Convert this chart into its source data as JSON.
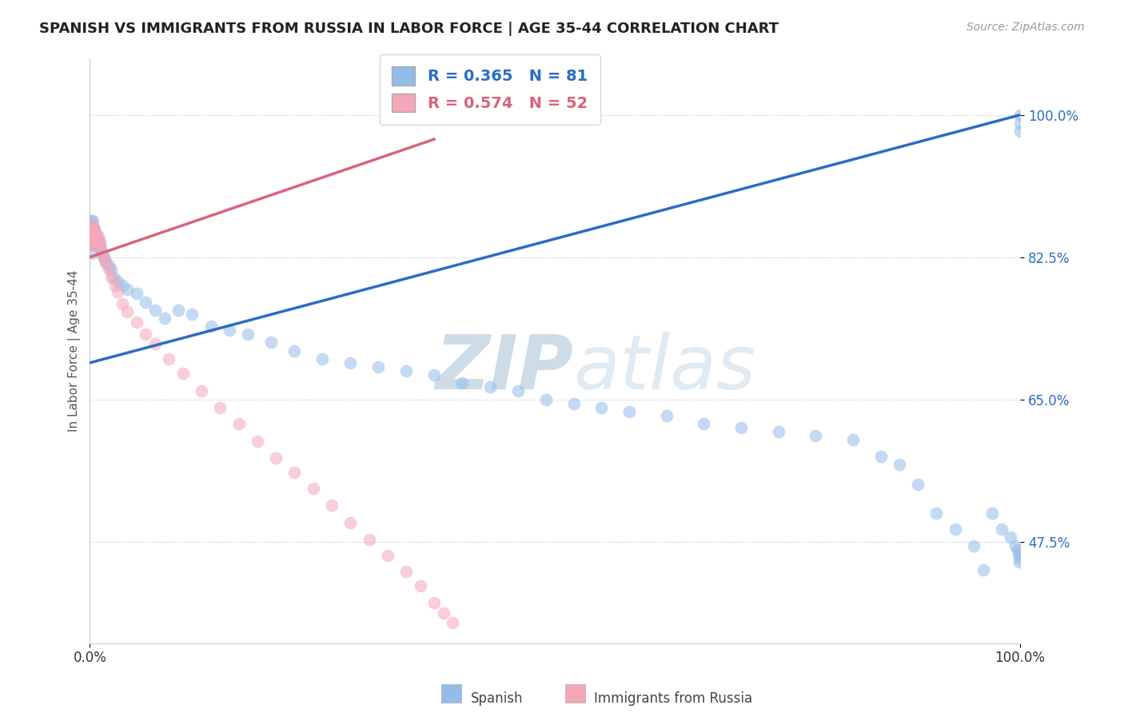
{
  "title": "SPANISH VS IMMIGRANTS FROM RUSSIA IN LABOR FORCE | AGE 35-44 CORRELATION CHART",
  "source": "Source: ZipAtlas.com",
  "ylabel": "In Labor Force | Age 35-44",
  "xlim": [
    0,
    1.0
  ],
  "ylim": [
    0.35,
    1.07
  ],
  "ytick_labels": [
    "47.5%",
    "65.0%",
    "82.5%",
    "100.0%"
  ],
  "ytick_values": [
    0.475,
    0.65,
    0.825,
    1.0
  ],
  "R_spanish": 0.365,
  "N_spanish": 81,
  "R_russia": 0.574,
  "N_russia": 52,
  "color_spanish": "#92bde8",
  "color_russia": "#f4a7b9",
  "line_color_spanish": "#2b6cc4",
  "line_color_russia": "#d9647a",
  "background_color": "#ffffff",
  "watermark": "ZIPatlas",
  "watermark_color": "#c8d8ea",
  "spanish_x": [
    0.001,
    0.001,
    0.002,
    0.002,
    0.002,
    0.003,
    0.003,
    0.003,
    0.003,
    0.004,
    0.004,
    0.004,
    0.005,
    0.005,
    0.005,
    0.005,
    0.006,
    0.006,
    0.007,
    0.007,
    0.008,
    0.009,
    0.01,
    0.011,
    0.012,
    0.013,
    0.015,
    0.017,
    0.02,
    0.023,
    0.025,
    0.03,
    0.035,
    0.04,
    0.05,
    0.06,
    0.07,
    0.08,
    0.095,
    0.11,
    0.13,
    0.15,
    0.17,
    0.195,
    0.22,
    0.25,
    0.28,
    0.31,
    0.34,
    0.37,
    0.4,
    0.43,
    0.46,
    0.49,
    0.52,
    0.55,
    0.58,
    0.62,
    0.66,
    0.7,
    0.74,
    0.78,
    0.82,
    0.85,
    0.87,
    0.89,
    0.91,
    0.93,
    0.95,
    0.96,
    0.97,
    0.98,
    0.99,
    0.995,
    0.997,
    0.998,
    0.999,
    0.999,
    1.0,
    1.0,
    1.0
  ],
  "spanish_y": [
    0.85,
    0.87,
    0.83,
    0.85,
    0.865,
    0.84,
    0.855,
    0.87,
    0.84,
    0.85,
    0.855,
    0.86,
    0.84,
    0.85,
    0.855,
    0.86,
    0.84,
    0.85,
    0.84,
    0.845,
    0.84,
    0.843,
    0.845,
    0.842,
    0.835,
    0.83,
    0.825,
    0.82,
    0.815,
    0.81,
    0.8,
    0.795,
    0.79,
    0.785,
    0.78,
    0.77,
    0.76,
    0.75,
    0.76,
    0.755,
    0.74,
    0.735,
    0.73,
    0.72,
    0.71,
    0.7,
    0.695,
    0.69,
    0.685,
    0.68,
    0.67,
    0.665,
    0.66,
    0.65,
    0.645,
    0.64,
    0.635,
    0.63,
    0.62,
    0.615,
    0.61,
    0.605,
    0.6,
    0.58,
    0.57,
    0.545,
    0.51,
    0.49,
    0.47,
    0.44,
    0.51,
    0.49,
    0.48,
    0.47,
    0.465,
    0.46,
    0.455,
    0.45,
    0.98,
    0.99,
    1.0
  ],
  "russia_x": [
    0.001,
    0.001,
    0.002,
    0.002,
    0.002,
    0.003,
    0.003,
    0.003,
    0.004,
    0.004,
    0.004,
    0.005,
    0.005,
    0.005,
    0.006,
    0.006,
    0.007,
    0.007,
    0.008,
    0.009,
    0.01,
    0.011,
    0.013,
    0.015,
    0.017,
    0.02,
    0.023,
    0.027,
    0.03,
    0.035,
    0.04,
    0.05,
    0.06,
    0.07,
    0.085,
    0.1,
    0.12,
    0.14,
    0.16,
    0.18,
    0.2,
    0.22,
    0.24,
    0.26,
    0.28,
    0.3,
    0.32,
    0.34,
    0.355,
    0.37,
    0.38,
    0.39
  ],
  "russia_y": [
    0.85,
    0.855,
    0.84,
    0.85,
    0.865,
    0.843,
    0.855,
    0.86,
    0.845,
    0.852,
    0.858,
    0.842,
    0.85,
    0.858,
    0.84,
    0.853,
    0.845,
    0.852,
    0.842,
    0.85,
    0.843,
    0.838,
    0.83,
    0.825,
    0.818,
    0.81,
    0.8,
    0.79,
    0.782,
    0.768,
    0.758,
    0.745,
    0.73,
    0.718,
    0.7,
    0.682,
    0.66,
    0.64,
    0.62,
    0.598,
    0.578,
    0.56,
    0.54,
    0.52,
    0.498,
    0.478,
    0.458,
    0.438,
    0.42,
    0.4,
    0.387,
    0.375
  ]
}
